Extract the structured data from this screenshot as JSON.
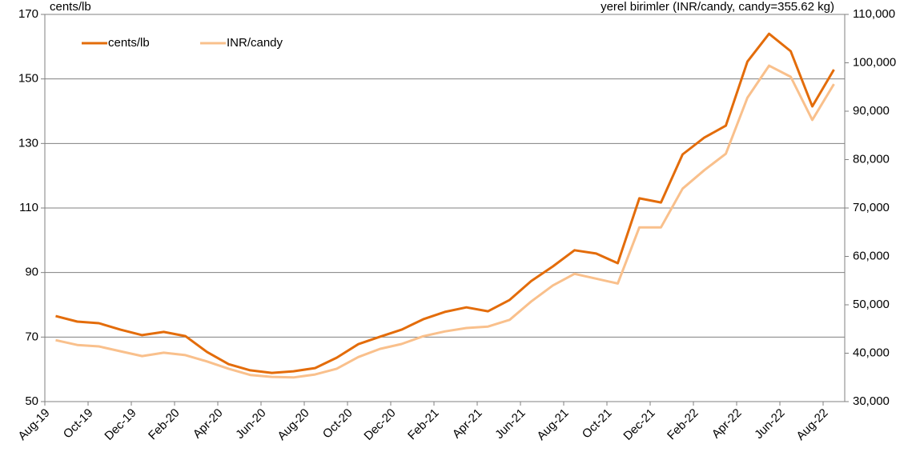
{
  "chart_data": {
    "type": "line",
    "ylabel": "cents/lb",
    "y2label": "yerel birimler (INR/candy, candy=355.62 kg)",
    "categories": [
      "Aug-19",
      null,
      "Oct-19",
      null,
      "Dec-19",
      null,
      "Feb-20",
      null,
      "Apr-20",
      null,
      "Jun-20",
      null,
      "Aug-20",
      null,
      "Oct-20",
      null,
      "Dec-20",
      null,
      "Feb-21",
      null,
      "Apr-21",
      null,
      "Jun-21",
      null,
      "Aug-21",
      null,
      "Oct-21",
      null,
      "Dec-21",
      null,
      "Feb-22",
      null,
      "Apr-22",
      null,
      "Jun-22",
      null,
      "Aug-22"
    ],
    "series": [
      {
        "name": "cents/lb",
        "color": "#e36c0a",
        "values": [
          76.5,
          74.8,
          74.3,
          72.3,
          70.6,
          71.6,
          70.3,
          65.4,
          61.6,
          59.7,
          58.9,
          59.4,
          60.4,
          63.6,
          67.8,
          70.1,
          72.3,
          75.5,
          77.8,
          79.2,
          78.0,
          81.5,
          87.4,
          91.9,
          96.9,
          95.9,
          92.9,
          113.0,
          111.7,
          126.6,
          131.8,
          135.5,
          155.4,
          164.0,
          158.6,
          141.5,
          152.9
        ]
      },
      {
        "name": "INR/candy",
        "color": "#f9c08c",
        "axis": "y2",
        "values": [
          42700,
          41700,
          41400,
          40400,
          39400,
          40100,
          39600,
          38300,
          36800,
          35500,
          35100,
          35000,
          35600,
          36800,
          39200,
          40900,
          41900,
          43500,
          44500,
          45200,
          45500,
          46900,
          50700,
          54000,
          56400,
          55400,
          54400,
          66000,
          66000,
          74000,
          77800,
          81200,
          92800,
          99400,
          97100,
          88200,
          95600
        ]
      }
    ],
    "ylim": [
      50,
      170
    ],
    "yticks": [
      50,
      70,
      90,
      110,
      130,
      150,
      170
    ],
    "y2lim": [
      30000,
      110000
    ],
    "y2ticks": [
      {
        "value": 30000,
        "label": "30,000"
      },
      {
        "value": 40000,
        "label": "40,000"
      },
      {
        "value": 50000,
        "label": "50,000"
      },
      {
        "value": 60000,
        "label": "60,000"
      },
      {
        "value": 70000,
        "label": "70,000"
      },
      {
        "value": 80000,
        "label": "80,000"
      },
      {
        "value": 90000,
        "label": "90,000"
      },
      {
        "value": 100000,
        "label": "100,000"
      },
      {
        "value": 110000,
        "label": "110,000"
      }
    ],
    "grid": true,
    "legend": "upper left"
  }
}
